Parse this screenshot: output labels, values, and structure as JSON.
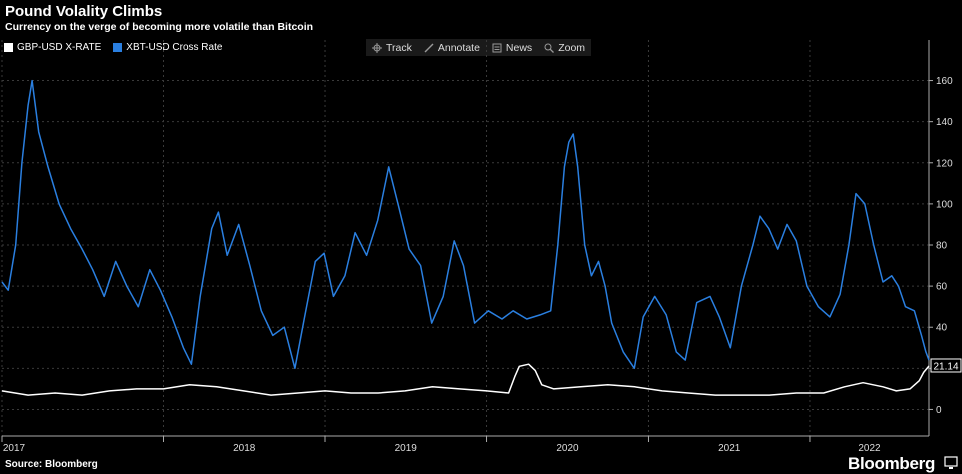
{
  "header": {
    "title": "Pound Volality Climbs",
    "subtitle": "Currency on the verge of becoming more volatile than Bitcoin"
  },
  "legend": [
    {
      "label": "GBP-USD X-RATE",
      "color": "#ffffff"
    },
    {
      "label": "XBT-USD Cross Rate",
      "color": "#2a7fe0"
    }
  ],
  "toolbar": {
    "track_label": "Track",
    "annotate_label": "Annotate",
    "news_label": "News",
    "zoom_label": "Zoom"
  },
  "footer": {
    "source": "Source: Bloomberg",
    "brand": "Bloomberg"
  },
  "chart_data": {
    "type": "line",
    "x_type": "date",
    "xlim": [
      "2017-01-01",
      "2022-09-27"
    ],
    "ylim": [
      -10,
      170
    ],
    "yticks": [
      0,
      20,
      40,
      60,
      80,
      100,
      120,
      140,
      160
    ],
    "x_tick_labels": [
      "2017",
      "2018",
      "2019",
      "2020",
      "2021",
      "2022"
    ],
    "last_value_label": "21.14",
    "grid": "dashed vertical and horizontal",
    "series": [
      {
        "name": "XBT-USD Cross Rate",
        "color": "#2a7fe0",
        "points": [
          [
            "2017-01-01",
            62
          ],
          [
            "2017-01-15",
            58
          ],
          [
            "2017-02-01",
            80
          ],
          [
            "2017-02-15",
            120
          ],
          [
            "2017-03-01",
            148
          ],
          [
            "2017-03-10",
            160
          ],
          [
            "2017-03-25",
            135
          ],
          [
            "2017-04-15",
            118
          ],
          [
            "2017-05-10",
            100
          ],
          [
            "2017-06-05",
            88
          ],
          [
            "2017-07-01",
            78
          ],
          [
            "2017-07-25",
            68
          ],
          [
            "2017-08-20",
            55
          ],
          [
            "2017-09-15",
            72
          ],
          [
            "2017-10-10",
            60
          ],
          [
            "2017-11-05",
            50
          ],
          [
            "2017-12-01",
            68
          ],
          [
            "2017-12-25",
            58
          ],
          [
            "2018-01-20",
            45
          ],
          [
            "2018-02-15",
            30
          ],
          [
            "2018-03-05",
            22
          ],
          [
            "2018-03-25",
            55
          ],
          [
            "2018-04-20",
            88
          ],
          [
            "2018-05-05",
            96
          ],
          [
            "2018-05-25",
            75
          ],
          [
            "2018-06-20",
            90
          ],
          [
            "2018-07-15",
            70
          ],
          [
            "2018-08-10",
            48
          ],
          [
            "2018-09-05",
            36
          ],
          [
            "2018-10-01",
            40
          ],
          [
            "2018-10-25",
            20
          ],
          [
            "2018-11-15",
            44
          ],
          [
            "2018-12-10",
            72
          ],
          [
            "2018-12-30",
            76
          ],
          [
            "2019-01-20",
            55
          ],
          [
            "2019-02-15",
            65
          ],
          [
            "2019-03-10",
            86
          ],
          [
            "2019-04-05",
            75
          ],
          [
            "2019-04-30",
            92
          ],
          [
            "2019-05-25",
            118
          ],
          [
            "2019-06-15",
            100
          ],
          [
            "2019-07-10",
            78
          ],
          [
            "2019-08-05",
            70
          ],
          [
            "2019-08-30",
            42
          ],
          [
            "2019-09-25",
            55
          ],
          [
            "2019-10-20",
            82
          ],
          [
            "2019-11-10",
            70
          ],
          [
            "2019-12-05",
            42
          ],
          [
            "2020-01-05",
            48
          ],
          [
            "2020-02-05",
            44
          ],
          [
            "2020-03-01",
            48
          ],
          [
            "2020-04-01",
            44
          ],
          [
            "2020-05-01",
            46
          ],
          [
            "2020-05-25",
            48
          ],
          [
            "2020-06-10",
            80
          ],
          [
            "2020-06-25",
            118
          ],
          [
            "2020-07-05",
            130
          ],
          [
            "2020-07-15",
            134
          ],
          [
            "2020-07-25",
            118
          ],
          [
            "2020-08-10",
            80
          ],
          [
            "2020-08-25",
            65
          ],
          [
            "2020-09-10",
            72
          ],
          [
            "2020-09-25",
            60
          ],
          [
            "2020-10-10",
            42
          ],
          [
            "2020-11-05",
            28
          ],
          [
            "2020-11-30",
            20
          ],
          [
            "2020-12-20",
            45
          ],
          [
            "2021-01-15",
            55
          ],
          [
            "2021-02-10",
            46
          ],
          [
            "2021-03-05",
            28
          ],
          [
            "2021-03-25",
            24
          ],
          [
            "2021-04-20",
            52
          ],
          [
            "2021-05-20",
            55
          ],
          [
            "2021-06-10",
            45
          ],
          [
            "2021-07-05",
            30
          ],
          [
            "2021-07-30",
            60
          ],
          [
            "2021-08-25",
            80
          ],
          [
            "2021-09-10",
            94
          ],
          [
            "2021-09-30",
            88
          ],
          [
            "2021-10-20",
            78
          ],
          [
            "2021-11-10",
            90
          ],
          [
            "2021-12-01",
            82
          ],
          [
            "2021-12-25",
            60
          ],
          [
            "2022-01-20",
            50
          ],
          [
            "2022-02-15",
            45
          ],
          [
            "2022-03-10",
            56
          ],
          [
            "2022-03-30",
            80
          ],
          [
            "2022-04-15",
            105
          ],
          [
            "2022-05-05",
            100
          ],
          [
            "2022-05-25",
            80
          ],
          [
            "2022-06-15",
            62
          ],
          [
            "2022-07-05",
            65
          ],
          [
            "2022-07-20",
            60
          ],
          [
            "2022-08-05",
            50
          ],
          [
            "2022-08-25",
            48
          ],
          [
            "2022-09-10",
            36
          ],
          [
            "2022-09-20",
            28
          ],
          [
            "2022-09-27",
            24
          ]
        ]
      },
      {
        "name": "GBP-USD X-RATE",
        "color": "#ffffff",
        "points": [
          [
            "2017-01-01",
            9
          ],
          [
            "2017-03-01",
            7
          ],
          [
            "2017-05-01",
            8
          ],
          [
            "2017-07-01",
            7
          ],
          [
            "2017-09-01",
            9
          ],
          [
            "2017-11-01",
            10
          ],
          [
            "2018-01-01",
            10
          ],
          [
            "2018-03-01",
            12
          ],
          [
            "2018-05-01",
            11
          ],
          [
            "2018-07-01",
            9
          ],
          [
            "2018-09-01",
            7
          ],
          [
            "2018-11-01",
            8
          ],
          [
            "2019-01-01",
            9
          ],
          [
            "2019-03-01",
            8
          ],
          [
            "2019-05-01",
            8
          ],
          [
            "2019-07-01",
            9
          ],
          [
            "2019-09-01",
            11
          ],
          [
            "2019-11-01",
            10
          ],
          [
            "2020-01-01",
            9
          ],
          [
            "2020-02-20",
            8
          ],
          [
            "2020-03-05",
            16
          ],
          [
            "2020-03-15",
            21
          ],
          [
            "2020-04-05",
            22
          ],
          [
            "2020-04-20",
            19
          ],
          [
            "2020-05-05",
            12
          ],
          [
            "2020-06-01",
            10
          ],
          [
            "2020-08-01",
            11
          ],
          [
            "2020-10-01",
            12
          ],
          [
            "2020-12-01",
            11
          ],
          [
            "2021-02-01",
            9
          ],
          [
            "2021-04-01",
            8
          ],
          [
            "2021-06-01",
            7
          ],
          [
            "2021-08-01",
            7
          ],
          [
            "2021-10-01",
            7
          ],
          [
            "2021-12-01",
            8
          ],
          [
            "2022-02-01",
            8
          ],
          [
            "2022-03-20",
            11
          ],
          [
            "2022-05-01",
            13
          ],
          [
            "2022-06-15",
            11
          ],
          [
            "2022-07-15",
            9
          ],
          [
            "2022-08-15",
            10
          ],
          [
            "2022-09-05",
            14
          ],
          [
            "2022-09-15",
            18
          ],
          [
            "2022-09-27",
            21.14
          ]
        ]
      }
    ]
  }
}
